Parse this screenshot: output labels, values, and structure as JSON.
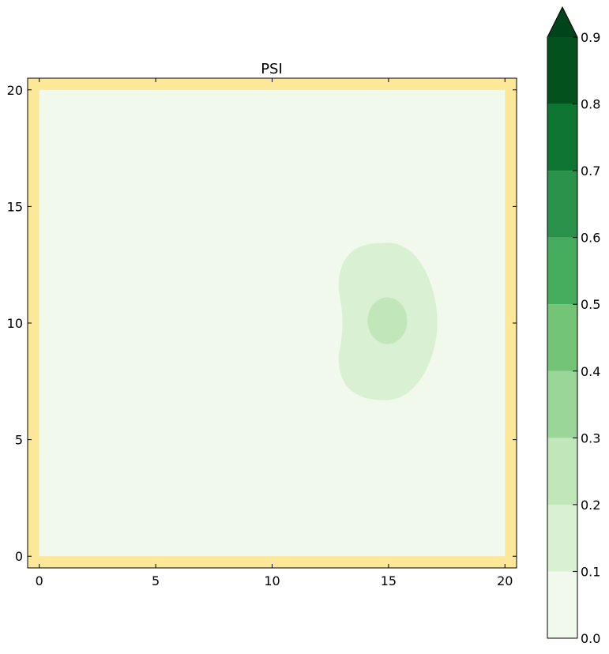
{
  "chart_data": {
    "type": "heatmap",
    "title": "PSI",
    "xlabel": "",
    "ylabel": "",
    "xlim": [
      -0.5,
      20.5
    ],
    "ylim": [
      -0.5,
      20.5
    ],
    "xticks": [
      "0",
      "5",
      "10",
      "15",
      "20"
    ],
    "yticks": [
      "0",
      "5",
      "10",
      "15",
      "20"
    ],
    "grid": false,
    "border_value_color": "#fde799",
    "domain": {
      "x": [
        0,
        20
      ],
      "y": [
        0,
        20
      ]
    },
    "contours": [
      {
        "level_range": [
          0.0,
          0.1
        ],
        "color": "#f0f9ec",
        "center": [
          15,
          10
        ],
        "x_extent": [
          0,
          20
        ],
        "y_extent": [
          0,
          20
        ]
      },
      {
        "level_range": [
          0.1,
          0.2
        ],
        "color": "#d9f0d3",
        "center": [
          15,
          10
        ],
        "x_extent": [
          12.8,
          17.1
        ],
        "y_extent": [
          6.7,
          13.5
        ]
      },
      {
        "level_range": [
          0.2,
          0.3
        ],
        "color": "#c0e6b9",
        "center": [
          14.9,
          10.2
        ],
        "x_extent": [
          14.1,
          15.8
        ],
        "y_extent": [
          9.1,
          11.1
        ]
      }
    ],
    "colorbar": {
      "location": "right",
      "extend": "max",
      "levels": [
        0.0,
        0.1,
        0.2,
        0.3,
        0.4,
        0.5,
        0.6,
        0.7,
        0.8,
        0.9
      ],
      "tick_labels": [
        "0.0",
        "0.1",
        "0.2",
        "0.3",
        "0.4",
        "0.5",
        "0.6",
        "0.7",
        "0.8",
        "0.9"
      ],
      "colors": [
        "#f0f9ec",
        "#d9f0d3",
        "#c0e6b9",
        "#9ad697",
        "#73c476",
        "#46ad5f",
        "#2a924a",
        "#0f7532",
        "#03521e"
      ],
      "over_color": "#00441b"
    }
  }
}
